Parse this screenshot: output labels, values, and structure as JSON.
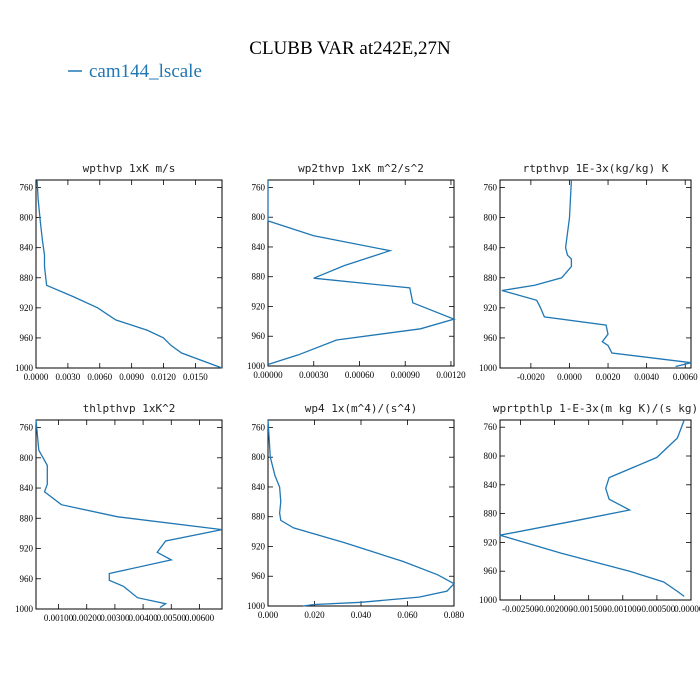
{
  "figure": {
    "title": "CLUBB VAR at242E,27N",
    "legend_label": "cam144_lscale",
    "series_color": "#1f77b4"
  },
  "chart_data": [
    {
      "type": "line",
      "title": "wpthvp  1xK m/s",
      "xlim": [
        0,
        0.0175
      ],
      "ylim": [
        1000,
        750
      ],
      "x_ticks": [
        0,
        0.003,
        0.006,
        0.009,
        0.012,
        0.015
      ],
      "x_tick_labels": [
        "0.0000",
        "0.0030",
        "0.0060",
        "0.0090",
        "0.0120",
        "0.0150"
      ],
      "y_ticks": [
        760,
        800,
        840,
        880,
        920,
        960,
        1000
      ],
      "y_tick_labels": [
        "760",
        "800",
        "840",
        "880",
        "920",
        "960",
        "1000"
      ],
      "series": [
        {
          "x": [
            0.0001,
            0.0002,
            0.0004,
            0.0006,
            0.0008,
            0.0008,
            0.0009,
            0.001,
            0.0035,
            0.0058,
            0.0075,
            0.0105,
            0.012,
            0.0127,
            0.0137,
            0.0175
          ],
          "y": [
            750,
            775,
            805,
            830,
            850,
            865,
            878,
            890,
            905,
            920,
            936,
            950,
            960,
            970,
            980,
            1000
          ]
        }
      ]
    },
    {
      "type": "line",
      "title": "wp2thvp  1xK m^2/s^2",
      "xlim": [
        0,
        0.00122
      ],
      "ylim": [
        1000,
        750
      ],
      "x_ticks": [
        0,
        0.0003,
        0.0006,
        0.0009,
        0.0012
      ],
      "x_tick_labels": [
        "0.00000",
        "0.00030",
        "0.00060",
        "0.00090",
        "0.00120"
      ],
      "y_ticks": [
        760,
        800,
        840,
        880,
        920,
        960,
        1000
      ],
      "y_tick_labels": [
        "760",
        "800",
        "840",
        "880",
        "920",
        "960",
        "1000"
      ],
      "series": [
        {
          "x": [
            0,
            0,
            0.0003,
            0.0008,
            0.0005,
            0.0003,
            0.00093,
            0.00095,
            0.00122,
            0.001,
            0.00045,
            0.0002,
            0
          ],
          "y": [
            750,
            805,
            825,
            845,
            865,
            882,
            895,
            915,
            937,
            950,
            965,
            985,
            998
          ]
        }
      ]
    },
    {
      "type": "line",
      "title": "rtpthvp  1E-3x(kg/kg) K",
      "xlim": [
        -0.0036,
        0.0063
      ],
      "ylim": [
        1000,
        750
      ],
      "x_ticks": [
        -0.002,
        0,
        0.002,
        0.004,
        0.006
      ],
      "x_tick_labels": [
        "-0.0020",
        "0.0000",
        "0.0020",
        "0.0040",
        "0.0060"
      ],
      "y_ticks": [
        760,
        800,
        840,
        880,
        920,
        960,
        1000
      ],
      "y_tick_labels": [
        "760",
        "800",
        "840",
        "880",
        "920",
        "960",
        "1000"
      ],
      "series": [
        {
          "x": [
            0.0001,
            0.0,
            -0.0002,
            -0.0001,
            0.0001,
            0.0001,
            -0.0004,
            -0.0018,
            -0.0035,
            -0.0017,
            -0.0015,
            -0.0013,
            0.0019,
            0.002,
            0.0017,
            0.002,
            0.0022,
            0.0063,
            0.0055
          ],
          "y": [
            750,
            800,
            840,
            850,
            855,
            865,
            880,
            890,
            897,
            910,
            920,
            932,
            943,
            955,
            965,
            970,
            980,
            993,
            998
          ]
        }
      ]
    },
    {
      "type": "line",
      "title": "thlpthvp  1xK^2",
      "xlim": [
        0.0002,
        0.0068
      ],
      "ylim": [
        1000,
        750
      ],
      "x_ticks": [
        0.001,
        0.002,
        0.003,
        0.004,
        0.005,
        0.006
      ],
      "x_tick_labels": [
        "0.00100",
        "0.00200",
        "0.00300",
        "0.00400",
        "0.00500",
        "0.00600"
      ],
      "y_ticks": [
        760,
        800,
        840,
        880,
        920,
        960,
        1000
      ],
      "y_tick_labels": [
        "760",
        "800",
        "840",
        "880",
        "920",
        "960",
        "1000"
      ],
      "series": [
        {
          "x": [
            0.0002,
            0.0003,
            0.0006,
            0.0006,
            0.0005,
            0.0011,
            0.0031,
            0.0068,
            0.0048,
            0.0045,
            0.005,
            0.0028,
            0.0028,
            0.0033,
            0.0038,
            0.0048,
            0.0046
          ],
          "y": [
            750,
            790,
            810,
            835,
            845,
            862,
            878,
            895,
            910,
            925,
            935,
            953,
            962,
            970,
            985,
            993,
            998
          ]
        }
      ]
    },
    {
      "type": "line",
      "title": "wp4  1x(m^4)/(s^4)",
      "xlim": [
        0,
        0.08
      ],
      "ylim": [
        1000,
        750
      ],
      "x_ticks": [
        0,
        0.02,
        0.04,
        0.06,
        0.08
      ],
      "x_tick_labels": [
        "0.000",
        "0.020",
        "0.040",
        "0.060",
        "0.080"
      ],
      "y_ticks": [
        760,
        800,
        840,
        880,
        920,
        960,
        1000
      ],
      "y_tick_labels": [
        "760",
        "800",
        "840",
        "880",
        "920",
        "960",
        "1000"
      ],
      "series": [
        {
          "x": [
            0,
            0.001,
            0.003,
            0.005,
            0.0055,
            0.005,
            0.0055,
            0.011,
            0.033,
            0.058,
            0.073,
            0.08,
            0.077,
            0.065,
            0.04,
            0.02,
            0.015
          ],
          "y": [
            750,
            800,
            825,
            840,
            860,
            875,
            885,
            895,
            915,
            940,
            958,
            970,
            980,
            988,
            995,
            998,
            1000
          ]
        }
      ]
    },
    {
      "type": "line",
      "title": "wprtpthlp  1-E-3x(m kg K)/(s kg)",
      "xlim": [
        -0.0028,
        0
      ],
      "ylim": [
        1000,
        750
      ],
      "x_ticks": [
        -0.0025,
        -0.002,
        -0.0015,
        -0.001,
        -0.0005,
        0
      ],
      "x_tick_labels": [
        "-0.002500",
        "-0.002000",
        "-0.001500",
        "-0.001000",
        "-0.000500",
        "0.000000"
      ],
      "y_ticks": [
        760,
        800,
        840,
        880,
        920,
        960,
        1000
      ],
      "y_tick_labels": [
        "760",
        "800",
        "840",
        "880",
        "920",
        "960",
        "1000"
      ],
      "series": [
        {
          "x": [
            -0.0001,
            -0.0002,
            -0.0005,
            -0.0012,
            -0.00125,
            -0.0012,
            -0.0009,
            -0.0017,
            -0.0028,
            -0.0019,
            -0.0009,
            -0.0004,
            -0.0002,
            -0.0001
          ],
          "y": [
            750,
            775,
            802,
            830,
            845,
            860,
            875,
            890,
            910,
            935,
            960,
            975,
            988,
            995
          ]
        }
      ]
    }
  ]
}
